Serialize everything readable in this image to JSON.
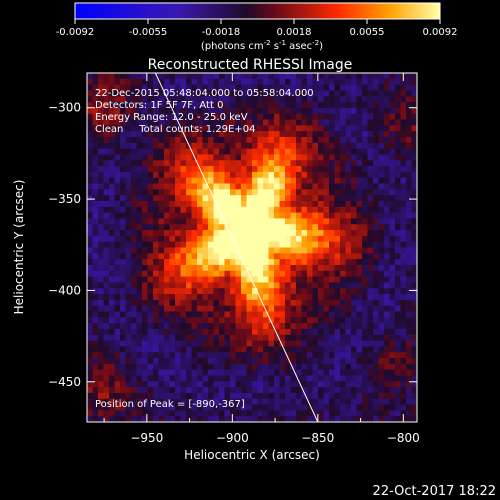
{
  "chart_data": {
    "type": "heatmap",
    "title": "Reconstructed RHESSI Image",
    "xlabel": "Heliocentric X (arcsec)",
    "ylabel": "Heliocentric Y (arcsec)",
    "xlim": [
      -985,
      -792
    ],
    "ylim": [
      -472,
      -281
    ],
    "x_ticks": [
      -950,
      -900,
      -850,
      -800
    ],
    "y_ticks": [
      -300,
      -350,
      -400,
      -450
    ],
    "colorbar": {
      "range": [
        -0.0092,
        0.0092
      ],
      "ticks": [
        "-0.0092",
        "-0.0055",
        "-0.0018",
        "0.0018",
        "0.0055",
        "0.0092"
      ],
      "unit_label": "(photons cm",
      "unit_exp1": "-2",
      "unit_mid": " s",
      "unit_exp2": "-1",
      "unit_mid2": " asec",
      "unit_exp3": "-2",
      "unit_close": ")"
    },
    "info_lines": [
      "22-Dec-2015 05:48:04.000 to 05:58:04.000",
      "Detectors: 1F 5F 7F, Att 0",
      "Energy Range: 12.0 - 25.0 keV",
      "Clean     Total counts: 1.29E+04"
    ],
    "peak_text": "Position of Peak = [-890,-367]",
    "peak": [
      -890,
      -367
    ],
    "limb_line": [
      [
        -945,
        -281
      ],
      [
        -850,
        -472
      ]
    ],
    "timestamp": "22-Oct-2017 18:22"
  }
}
